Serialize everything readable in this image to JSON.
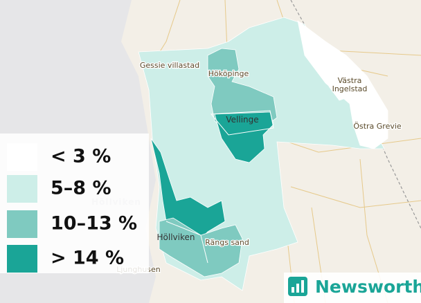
{
  "legend": {
    "items": [
      {
        "label": "< 3 %",
        "color": "#ffffff"
      },
      {
        "label": "5–8 %",
        "color": "#cdeee8"
      },
      {
        "label": "10–13 %",
        "color": "#7fcac0"
      },
      {
        "label": "> 14 %",
        "color": "#1aa597"
      }
    ]
  },
  "places": [
    {
      "label": "Gessie villastad"
    },
    {
      "label": "Hököpinge"
    },
    {
      "label": "Vellinge"
    },
    {
      "label": "Västra Ingelstad"
    },
    {
      "label": "Östra Grevie"
    },
    {
      "label": "Höllviken"
    },
    {
      "label": "Rängs sand"
    },
    {
      "label": "Ljunghusen"
    }
  ],
  "water_labels": [
    "Höllviken"
  ],
  "logo": {
    "text": "Newsworthy"
  }
}
